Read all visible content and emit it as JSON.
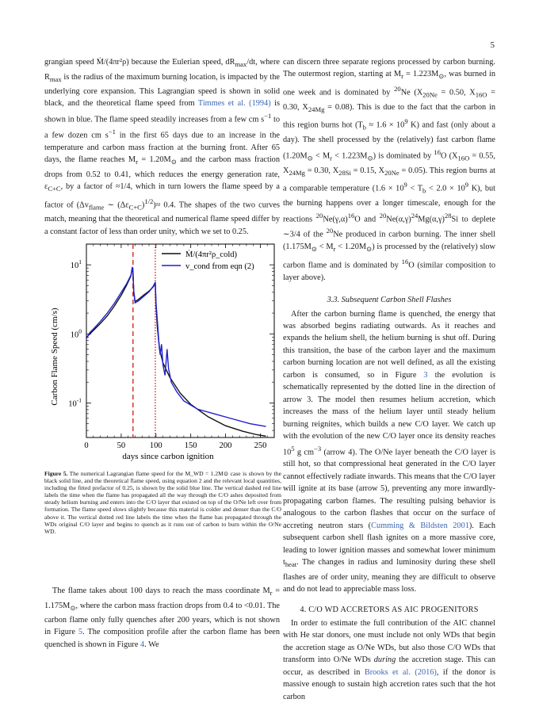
{
  "page_number": "5",
  "left_top": [
    "grangian speed Ṁ/(4πr²ρ) because the Eulerian speed, dR",
    "max",
    "/dt, where R",
    "max",
    " is the radius of the maximum burning location, is impacted by the underlying core expansion. This Lagrangian speed is shown in solid black, and the theoretical flame speed from ",
    "Timmes et al. (1994)",
    " is shown in blue. The flame speed steadily increases from a few cm s",
    "−1",
    " to a few dozen cm s",
    "−1",
    " in the first 65 days due to an increase in the temperature and carbon mass fraction at the burning front. After 65 days, the flame reaches M",
    "r",
    " = 1.20M",
    "⊙",
    " and the carbon mass fraction drops from 0.52 to 0.41, which reduces the energy generation rate, ε",
    "C+C",
    ", by a factor of ≈1/4, which in turn lowers the flame speed by a factor of (Δv",
    "flame",
    " ∼ (Δε",
    "C+C",
    ")",
    "1/2",
    ")≈ 0.4. The shapes of the two curves match, meaning that the theoretical and numerical flame speed differ by a constant factor of less than order unity, which we set to 0.25."
  ],
  "left_bottom": [
    "The flame takes about 100 days to reach the mass coordinate M",
    "r",
    " = 1.175M",
    "⊙",
    ", where the carbon mass fraction drops from 0.4 to <0.01. The carbon flame only fully quenches after 200 years, which is not shown in Figure ",
    "5",
    ". The composition profile after the carbon flame has been quenched is shown in Figure ",
    "4",
    ". We"
  ],
  "caption": {
    "label": "Figure 5.",
    "text": " The numerical Lagrangian flame speed for the M_WD = 1.2M⊙ case is shown by the black solid line, and the theoretical flame speed, using equation 2 and the relevant local quantities, including the fitted prefactor of 0.25, is shown by the solid blue line. The vertical dashed red line labels the time when the flame has propagated all the way through the C/O ashes deposited from steady helium burning and enters into the C/O layer that existed on top of the O/Ne left over from formation. The flame speed slows slightly because this material is colder and denser than the C/O above it. The vertical dotted red line labels the time when the flame has propagated through the WDs original C/O layer and begins to quench as it runs out of carbon to burn within the O/Ne WD."
  },
  "right_para1": [
    "can discern three separate regions processed by carbon burning. The outermost region, starting at M",
    "r",
    " = 1.223M",
    "⊙",
    ", was burned in one week and is dominated by ",
    "20",
    "Ne (X",
    "20Ne",
    " = 0.50, X",
    "16O",
    " = 0.30, X",
    "24Mg",
    " = 0.08). This is due to the fact that the carbon in this region burns hot (T",
    "b",
    " ≈ 1.6 × 10",
    "9",
    " K) and fast (only about a day). The shell processed by the (relatively) fast carbon flame (1.20M",
    "⊙",
    " < M",
    "r",
    " < 1.223M",
    "⊙",
    ") is dominated by ",
    "16",
    "O (X",
    "16O",
    " = 0.55, X",
    "24Mg",
    " = 0.30, X",
    "28Si",
    " = 0.15, X",
    "20Ne",
    " = 0.05). This region burns at a comparable temperature (1.6 × 10",
    "9",
    " < T",
    "b",
    " < 2.0 × 10",
    "9",
    " K), but the burning happens over a longer timescale, enough for the reactions ",
    "20",
    "Ne(γ,α)",
    "16",
    "O and ",
    "20",
    "Ne(α,γ)",
    "24",
    "Mg(α,γ)",
    "28",
    "Si to deplete ∼3/4 of the ",
    "20",
    "Ne produced in carbon burning. The inner shell (1.175M",
    "⊙",
    " < M",
    "r",
    " < 1.20M",
    "⊙",
    ") is processed by the (relatively) slow carbon flame and is dominated by ",
    "16",
    "O (similar composition to layer above)."
  ],
  "section_33": "3.3.  Subsequent Carbon Shell Flashes",
  "right_para2": [
    "After the carbon burning flame is quenched, the energy that was absorbed begins radiating outwards. As it reaches and expands the helium shell, the helium burning is shut off. During this transition, the base of the carbon layer and the maximum carbon burning location are not well defined, as all the existing carbon is consumed, so in Figure ",
    "3",
    " the evolution is schematically represented by the dotted line in the direction of arrow 3. The model then resumes helium accretion, which increases the mass of the helium layer until steady helium burning reignites, which builds a new C/O layer. We catch up with the evolution of the new C/O layer once its density reaches 10",
    "5",
    " g cm",
    "−3",
    " (arrow 4). The O/Ne layer beneath the C/O layer is still hot, so that compressional heat generated in the C/O layer cannot effectively radiate inwards. This means that the C/O layer will ignite at its base (arrow 5), preventing any more inwardly-propagating carbon flames. The resulting pulsing behavior is analogous to the carbon flashes that occur on the surface of accreting neutron stars (",
    "Cumming & Bildsten 2001",
    "). Each subsequent carbon shell flash ignites on a more massive core, leading to lower ignition masses and somewhat lower minimum t",
    "heat",
    ". The changes in radius and luminosity during these shell flashes are of order unity, meaning they are difficult to observe and do not lead to appreciable mass loss."
  ],
  "section_4": "4.  C/O WD ACCRETORS AS AIC PROGENITORS",
  "right_para3": [
    "In order to estimate the full contribution of the AIC channel with He star donors, one must include not only WDs that begin the accretion stage as O/Ne WDs, but also those C/O WDs that transform into O/Ne WDs ",
    "during",
    " the accretion stage. This can occur, as described in ",
    "Brooks et al. (2016)",
    ", if the donor is massive enough to sustain high accretion rates such that the hot carbon"
  ],
  "chart_data": {
    "type": "line",
    "title": "",
    "xlabel": "days since carbon ignition",
    "ylabel": "Carbon Flame Speed (cm/s)",
    "xlim": [
      0,
      270
    ],
    "ylim_log10": [
      -1.5,
      1.3
    ],
    "y_scale": "log",
    "x_ticks": [
      "0",
      "50",
      "100",
      "150",
      "200",
      "250"
    ],
    "y_ticks": [
      "10^1",
      "10^0",
      "10^-1"
    ],
    "legend_position": "top-right",
    "vlines": [
      {
        "x": 67,
        "style": "dashed",
        "color": "#d62728"
      },
      {
        "x": 99,
        "style": "dotted",
        "color": "#d62728"
      }
    ],
    "series": [
      {
        "name": "Ṁ/(4πr²ρ_cold)",
        "color": "#111111",
        "points": [
          [
            0,
            -0.05
          ],
          [
            2,
            -0.03
          ],
          [
            5,
            0.0
          ],
          [
            12,
            0.07
          ],
          [
            20,
            0.15
          ],
          [
            30,
            0.26
          ],
          [
            40,
            0.4
          ],
          [
            50,
            0.56
          ],
          [
            58,
            0.71
          ],
          [
            64,
            0.84
          ],
          [
            66,
            0.96
          ],
          [
            67,
            0.88
          ],
          [
            68,
            0.62
          ],
          [
            70,
            0.47
          ],
          [
            75,
            0.5
          ],
          [
            82,
            0.56
          ],
          [
            90,
            0.62
          ],
          [
            96,
            0.68
          ],
          [
            99,
            0.73
          ],
          [
            100,
            0.42
          ],
          [
            102,
            0.1
          ],
          [
            105,
            -0.22
          ],
          [
            110,
            -0.42
          ],
          [
            120,
            -0.63
          ],
          [
            135,
            -0.86
          ],
          [
            150,
            -1.02
          ],
          [
            175,
            -1.2
          ],
          [
            200,
            -1.33
          ],
          [
            225,
            -1.41
          ],
          [
            245,
            -1.46
          ],
          [
            258,
            -1.48
          ]
        ]
      },
      {
        "name": "v_cond from eqn (2)",
        "color": "#1f1fd0",
        "points": [
          [
            0,
            -0.07
          ],
          [
            2,
            -0.03
          ],
          [
            5,
            0.02
          ],
          [
            12,
            0.09
          ],
          [
            20,
            0.18
          ],
          [
            30,
            0.3
          ],
          [
            40,
            0.44
          ],
          [
            50,
            0.6
          ],
          [
            58,
            0.73
          ],
          [
            64,
            0.85
          ],
          [
            66,
            0.97
          ],
          [
            67,
            0.9
          ],
          [
            68,
            0.62
          ],
          [
            70,
            0.45
          ],
          [
            75,
            0.48
          ],
          [
            82,
            0.54
          ],
          [
            90,
            0.61
          ],
          [
            96,
            0.69
          ],
          [
            99,
            0.75
          ],
          [
            100,
            0.45
          ],
          [
            102,
            0.2
          ],
          [
            104,
            -0.1
          ],
          [
            106,
            -0.3
          ],
          [
            108,
            -0.15
          ],
          [
            110,
            -0.45
          ],
          [
            113,
            -0.6
          ],
          [
            116,
            -0.22
          ],
          [
            118,
            -0.5
          ],
          [
            122,
            -0.7
          ],
          [
            130,
            -0.84
          ],
          [
            140,
            -0.97
          ],
          [
            160,
            -1.09
          ],
          [
            185,
            -1.16
          ],
          [
            210,
            -1.23
          ],
          [
            235,
            -1.3
          ],
          [
            258,
            -1.34
          ]
        ]
      }
    ]
  }
}
